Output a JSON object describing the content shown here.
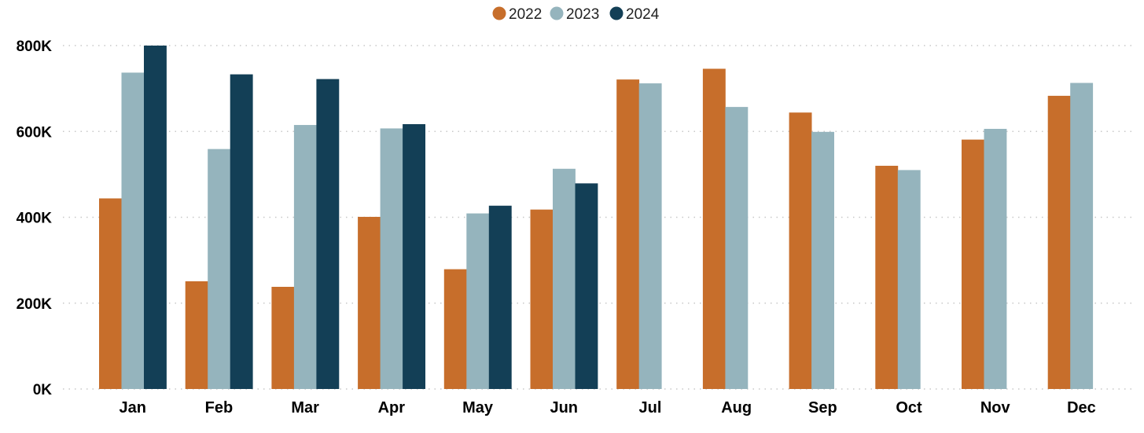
{
  "chart_data": {
    "type": "bar",
    "title": "",
    "xlabel": "",
    "ylabel": "",
    "categories": [
      "Jan",
      "Feb",
      "Mar",
      "Apr",
      "May",
      "Jun",
      "Jul",
      "Aug",
      "Sep",
      "Oct",
      "Nov",
      "Dec"
    ],
    "series": [
      {
        "name": "2022",
        "color": "#C76E2B",
        "values": [
          444000,
          251000,
          238000,
          401000,
          279000,
          418000,
          721000,
          746000,
          644000,
          520000,
          581000,
          683000
        ]
      },
      {
        "name": "2023",
        "color": "#95B4BD",
        "values": [
          737000,
          559000,
          615000,
          607000,
          409000,
          513000,
          712000,
          657000,
          599000,
          510000,
          606000,
          713000
        ]
      },
      {
        "name": "2024",
        "color": "#133F56",
        "values": [
          800000,
          733000,
          722000,
          617000,
          427000,
          479000,
          null,
          null,
          null,
          null,
          null,
          null
        ]
      }
    ],
    "ylim": [
      0,
      800000
    ],
    "yticks": [
      0,
      200000,
      400000,
      600000,
      800000
    ],
    "ytick_labels": [
      "0K",
      "200K",
      "400K",
      "600K",
      "800K"
    ],
    "grid": true,
    "legend_position": "top-center"
  }
}
